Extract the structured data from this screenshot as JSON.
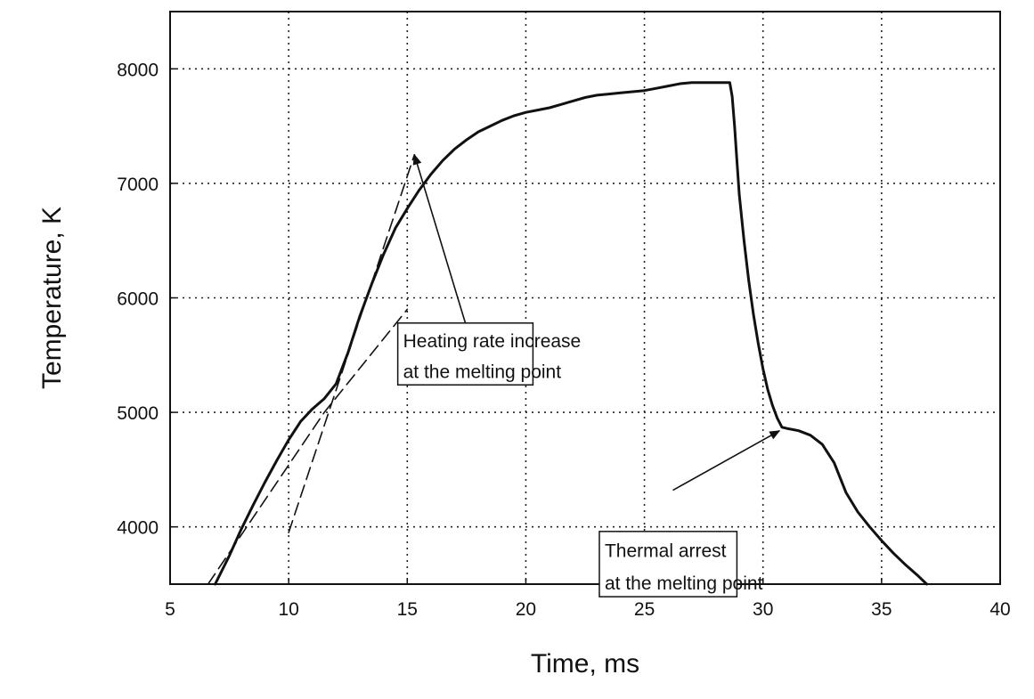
{
  "chart_data": {
    "type": "line",
    "title": "",
    "xlabel": "Time, ms",
    "ylabel": "Temperature, K",
    "xlim": [
      5,
      40
    ],
    "ylim": [
      3500,
      8500
    ],
    "x_ticks": [
      5,
      10,
      15,
      20,
      25,
      30,
      35,
      40
    ],
    "y_ticks": [
      4000,
      5000,
      6000,
      7000,
      8000
    ],
    "grid": true,
    "grid_style": "dotted",
    "legend": "none",
    "series": [
      {
        "style": "solid",
        "color": "#111111",
        "points": [
          [
            6.9,
            3500
          ],
          [
            7.5,
            3750
          ],
          [
            8.0,
            3980
          ],
          [
            8.5,
            4190
          ],
          [
            9.0,
            4390
          ],
          [
            9.5,
            4580
          ],
          [
            10.0,
            4760
          ],
          [
            10.5,
            4920
          ],
          [
            11.0,
            5030
          ],
          [
            11.5,
            5120
          ],
          [
            12.0,
            5250
          ],
          [
            12.5,
            5520
          ],
          [
            13.0,
            5840
          ],
          [
            13.5,
            6120
          ],
          [
            14.0,
            6380
          ],
          [
            14.5,
            6610
          ],
          [
            15.0,
            6780
          ],
          [
            15.5,
            6940
          ],
          [
            16.0,
            7080
          ],
          [
            16.5,
            7200
          ],
          [
            17.0,
            7300
          ],
          [
            17.5,
            7380
          ],
          [
            18.0,
            7450
          ],
          [
            18.5,
            7500
          ],
          [
            19.0,
            7550
          ],
          [
            19.5,
            7590
          ],
          [
            20.0,
            7620
          ],
          [
            20.5,
            7640
          ],
          [
            21.0,
            7660
          ],
          [
            21.5,
            7690
          ],
          [
            22.0,
            7720
          ],
          [
            22.5,
            7750
          ],
          [
            23.0,
            7770
          ],
          [
            23.5,
            7780
          ],
          [
            24.0,
            7790
          ],
          [
            24.5,
            7800
          ],
          [
            25.0,
            7810
          ],
          [
            25.5,
            7830
          ],
          [
            26.0,
            7850
          ],
          [
            26.5,
            7870
          ],
          [
            27.0,
            7880
          ],
          [
            27.5,
            7880
          ],
          [
            28.0,
            7880
          ],
          [
            28.6,
            7880
          ],
          [
            28.7,
            7760
          ],
          [
            28.8,
            7500
          ],
          [
            28.9,
            7200
          ],
          [
            29.0,
            6900
          ],
          [
            29.2,
            6500
          ],
          [
            29.4,
            6150
          ],
          [
            29.6,
            5850
          ],
          [
            29.8,
            5600
          ],
          [
            30.0,
            5380
          ],
          [
            30.2,
            5200
          ],
          [
            30.4,
            5060
          ],
          [
            30.6,
            4950
          ],
          [
            30.8,
            4870
          ],
          [
            31.0,
            4860
          ],
          [
            31.5,
            4840
          ],
          [
            32.0,
            4800
          ],
          [
            32.5,
            4720
          ],
          [
            33.0,
            4560
          ],
          [
            33.5,
            4300
          ],
          [
            34.0,
            4130
          ],
          [
            34.5,
            4000
          ],
          [
            35.0,
            3880
          ],
          [
            35.5,
            3770
          ],
          [
            36.0,
            3670
          ],
          [
            36.5,
            3580
          ],
          [
            36.9,
            3500
          ]
        ]
      },
      {
        "style": "dashed",
        "color": "#111111",
        "points": [
          [
            6.6,
            3500
          ],
          [
            11.5,
            5000
          ],
          [
            15.0,
            5900
          ]
        ]
      },
      {
        "style": "dashed",
        "color": "#111111",
        "points": [
          [
            10.0,
            3950
          ],
          [
            15.3,
            7250
          ]
        ]
      }
    ],
    "annotations": [
      {
        "text_lines": [
          "Heating rate increase",
          "at the melting point"
        ],
        "x": 14.6,
        "y": 5780,
        "x_end": 20.3,
        "y_end": 5240,
        "boxed": true,
        "arrow_to": [
          15.3,
          7250
        ]
      },
      {
        "text_lines": [
          "Thermal arrest",
          "at the melting point"
        ],
        "x": 23.1,
        "y": 3960,
        "x_end": 28.9,
        "y_end": 3390,
        "boxed": true,
        "arrow_from": [
          26.2,
          4320
        ],
        "arrow_to": [
          30.7,
          4840
        ]
      }
    ]
  }
}
